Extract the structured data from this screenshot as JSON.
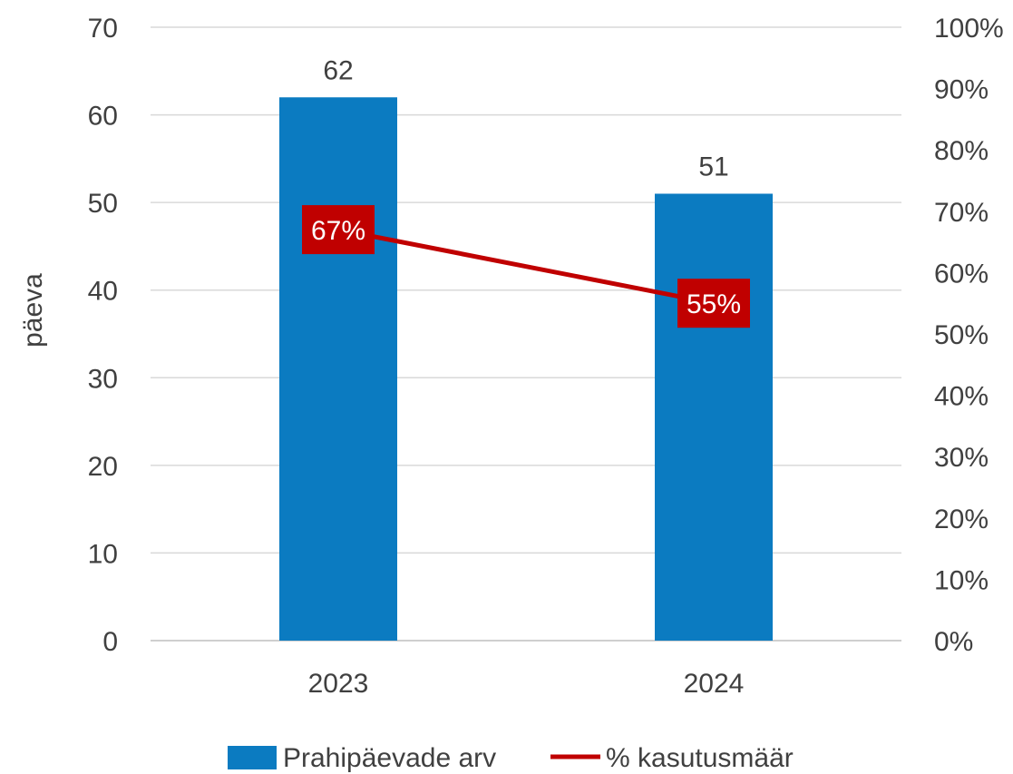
{
  "chart_data": {
    "type": "bar",
    "categories": [
      "2023",
      "2024"
    ],
    "series": [
      {
        "name": "Prahipäevade arv",
        "type": "bar",
        "axis": "left",
        "values": [
          62,
          51
        ],
        "labels": [
          "62",
          "51"
        ],
        "color": "#0b7bc1"
      },
      {
        "name": "% kasutusmäär",
        "type": "line",
        "axis": "right",
        "values": [
          0.67,
          0.55
        ],
        "labels": [
          "67%",
          "55%"
        ],
        "color": "#c00000"
      }
    ],
    "ylabel": "päeva",
    "ylim": [
      0,
      70
    ],
    "y_ticks": [
      "0",
      "10",
      "20",
      "30",
      "40",
      "50",
      "60",
      "70"
    ],
    "y2lim": [
      0,
      1
    ],
    "y2_ticks": [
      "0%",
      "10%",
      "20%",
      "30%",
      "40%",
      "50%",
      "60%",
      "70%",
      "80%",
      "90%",
      "100%"
    ],
    "grid": true,
    "legend_position": "bottom",
    "gridline_color": "#d9d9d9",
    "label_color": "#404040"
  }
}
